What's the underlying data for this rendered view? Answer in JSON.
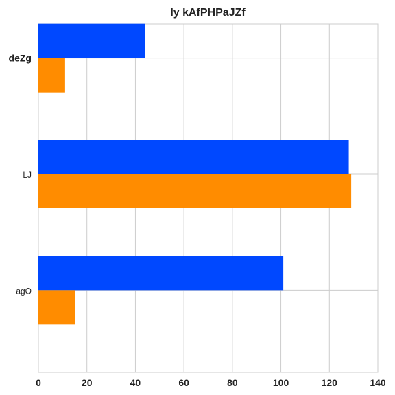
{
  "chart_data": {
    "type": "bar",
    "orientation": "horizontal",
    "title": "ly kAfPHPaJZf",
    "xlabel": "",
    "ylabel": "",
    "categories": [
      "deZg",
      "LJ",
      "agO"
    ],
    "series": [
      {
        "values": [
          44,
          128,
          101
        ],
        "color": "#0048ff"
      },
      {
        "values": [
          11,
          129,
          15
        ],
        "color": "#ff8c00"
      }
    ],
    "xlim": [
      0,
      140
    ],
    "xticks": [
      0,
      20,
      40,
      60,
      80,
      100,
      120,
      140
    ],
    "grid": true,
    "legend": "none"
  }
}
